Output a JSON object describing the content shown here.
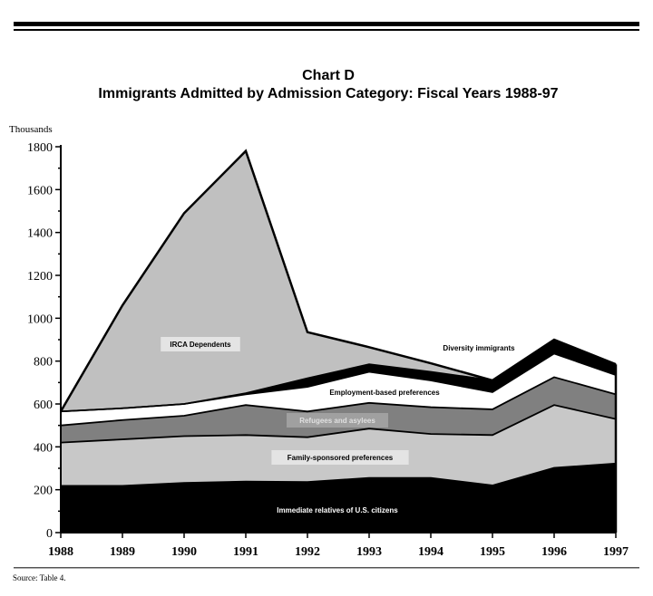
{
  "chart_data": {
    "type": "area",
    "stacked": true,
    "title": "Chart D",
    "subtitle": "Immigrants Admitted by Admission Category: Fiscal Years 1988-97",
    "ylabel": "Thousands",
    "xlabel": "",
    "ylim": [
      0,
      1800
    ],
    "yticks": [
      0,
      200,
      400,
      600,
      800,
      1000,
      1200,
      1400,
      1600,
      1800
    ],
    "categories": [
      "1988",
      "1989",
      "1990",
      "1991",
      "1992",
      "1993",
      "1994",
      "1995",
      "1996",
      "1997"
    ],
    "grid": false,
    "series": [
      {
        "name": "Immediate relatives of U.S. citizens",
        "color": "#000000",
        "label_color": "#ffffff",
        "values": [
          218,
          218,
          232,
          238,
          236,
          255,
          255,
          220,
          302,
          322
        ]
      },
      {
        "name": "Family-sponsored preferences",
        "color": "#c8c8c8",
        "label_color": "#000000",
        "values": [
          202,
          217,
          218,
          217,
          209,
          230,
          205,
          235,
          293,
          208
        ]
      },
      {
        "name": "Refugees and asylees",
        "color": "#808080",
        "label_color": "#e0e0e0",
        "values": [
          80,
          90,
          95,
          140,
          120,
          120,
          125,
          120,
          130,
          115
        ]
      },
      {
        "name": "Employment-based preferences",
        "color": "#ffffff",
        "label_color": "#000000",
        "values": [
          65,
          55,
          55,
          50,
          115,
          145,
          125,
          80,
          110,
          90
        ]
      },
      {
        "name": "Diversity immigrants",
        "color": "#000000",
        "label_color": "#000000",
        "values": [
          0,
          0,
          0,
          5,
          40,
          35,
          40,
          55,
          65,
          50
        ]
      },
      {
        "name": "IRCA Dependents",
        "color": "#c0c0c0",
        "label_color": "#000000",
        "values": [
          0,
          480,
          890,
          1130,
          215,
          80,
          40,
          0,
          0,
          0
        ]
      }
    ],
    "source": "Source:  Table 4."
  }
}
